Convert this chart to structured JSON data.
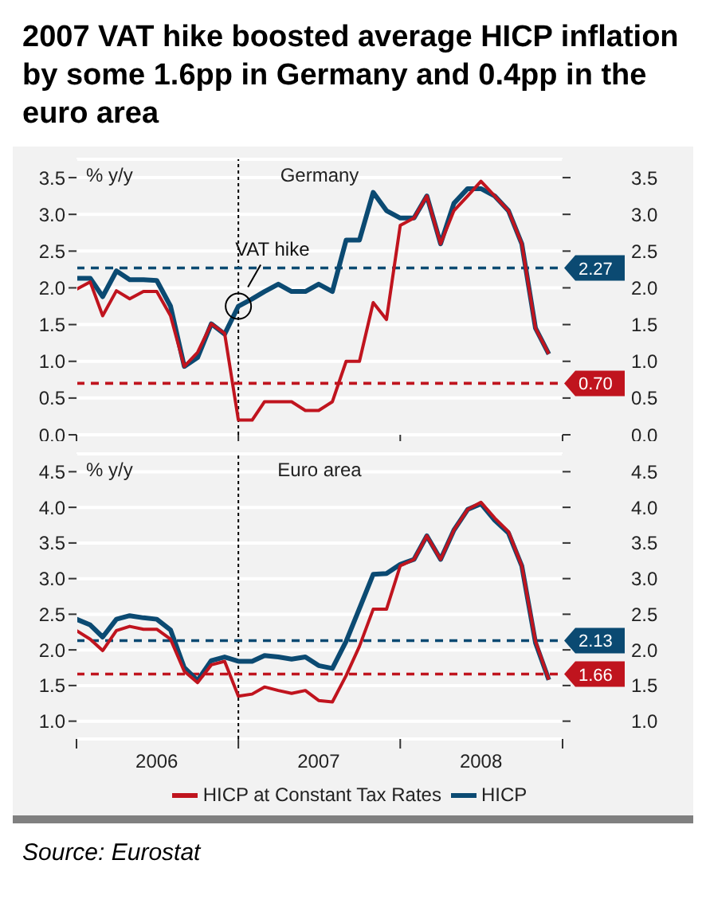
{
  "chart_data": [
    {
      "type": "line",
      "title": "2007 VAT hike boosted average HICP inflation by some 1.6pp in Germany and 0.4pp in the euro area",
      "subtitle": "Germany",
      "ylabel": "% y/y",
      "x": [
        "2006-01",
        "2006-02",
        "2006-03",
        "2006-04",
        "2006-05",
        "2006-06",
        "2006-07",
        "2006-08",
        "2006-09",
        "2006-10",
        "2006-11",
        "2006-12",
        "2007-01",
        "2007-02",
        "2007-03",
        "2007-04",
        "2007-05",
        "2007-06",
        "2007-07",
        "2007-08",
        "2007-09",
        "2007-10",
        "2007-11",
        "2007-12",
        "2008-01",
        "2008-02",
        "2008-03",
        "2008-04",
        "2008-05",
        "2008-06",
        "2008-07",
        "2008-08",
        "2008-09",
        "2008-10",
        "2008-11",
        "2008-12"
      ],
      "series": [
        {
          "color": "#c0141e",
          "values": [
            1.98,
            2.08,
            1.62,
            1.96,
            1.85,
            1.95,
            1.95,
            1.62,
            0.93,
            1.12,
            1.51,
            1.38,
            0.2,
            0.2,
            0.45,
            0.45,
            0.45,
            0.33,
            0.33,
            0.45,
            1.0,
            1.0,
            1.8,
            1.57,
            2.85,
            2.95,
            3.25,
            2.6,
            3.05,
            3.25,
            3.45,
            3.25,
            3.05,
            2.6,
            1.45,
            1.1
          ]
        },
        {
          "color": "#0b4a72",
          "values": [
            2.13,
            2.13,
            1.88,
            2.23,
            2.11,
            2.11,
            2.1,
            1.75,
            0.93,
            1.05,
            1.51,
            1.37,
            1.75,
            1.85,
            1.95,
            2.05,
            1.95,
            1.95,
            2.05,
            1.95,
            2.65,
            2.65,
            3.3,
            3.05,
            2.95,
            2.95,
            3.25,
            2.6,
            3.15,
            3.35,
            3.35,
            3.25,
            3.05,
            2.6,
            1.45,
            1.1
          ]
        }
      ],
      "xlim": [
        "2006-01",
        "2009-01"
      ],
      "xticks": [
        {
          "value": "2006-01",
          "label": null
        },
        {
          "value": "2007-01",
          "label": null
        },
        {
          "value": "2008-01",
          "label": null
        },
        {
          "value": "2009-01",
          "label": null
        }
      ],
      "ylim": [
        0,
        3.75
      ],
      "yticks": [
        {
          "value": 0,
          "label": "0.0"
        },
        0.5,
        {
          "value": 1,
          "label": "1.0"
        },
        1.5,
        {
          "value": 2,
          "label": "2.0"
        },
        2.5,
        {
          "value": 3,
          "label": "3.0"
        },
        3.5
      ],
      "y2lim": [
        0,
        3.75
      ],
      "y2ticks": [
        {
          "value": 0,
          "label": "0.0"
        },
        0.5,
        {
          "value": 1,
          "label": "1.0"
        },
        1.5,
        {
          "value": 2,
          "label": "2.0"
        },
        2.5,
        {
          "value": 3,
          "label": "3.0"
        },
        3.5
      ],
      "tick_labels": "y",
      "grid": "y",
      "ref_lines": [
        {
          "axis": "x",
          "value": "2007-01",
          "label": null,
          "color": "#000000",
          "line_style": "dotted"
        },
        {
          "axis": "y",
          "value": 2.27,
          "label": "2.27",
          "color": "#0b4a72",
          "line_style": "dashed"
        },
        {
          "axis": "y",
          "value": 0.7,
          "label": "0.70",
          "color": "#c0141e",
          "line_style": "dashed"
        }
      ],
      "annotations": [
        {
          "text": "VAT hike",
          "x": "2007-01",
          "y": 1.75
        }
      ]
    },
    {
      "type": "line",
      "title": "Euro area",
      "ylabel": "% y/y",
      "x": [
        "2006-01",
        "2006-02",
        "2006-03",
        "2006-04",
        "2006-05",
        "2006-06",
        "2006-07",
        "2006-08",
        "2006-09",
        "2006-10",
        "2006-11",
        "2006-12",
        "2007-01",
        "2007-02",
        "2007-03",
        "2007-04",
        "2007-05",
        "2007-06",
        "2007-07",
        "2007-08",
        "2007-09",
        "2007-10",
        "2007-11",
        "2007-12",
        "2008-01",
        "2008-02",
        "2008-03",
        "2008-04",
        "2008-05",
        "2008-06",
        "2008-07",
        "2008-08",
        "2008-09",
        "2008-10",
        "2008-11",
        "2008-12"
      ],
      "series": [
        {
          "name": "HICP at Constant Tax Rates",
          "color": "#c0141e",
          "values": [
            2.27,
            2.15,
            1.99,
            2.27,
            2.33,
            2.29,
            2.29,
            2.15,
            1.7,
            1.54,
            1.79,
            1.84,
            1.35,
            1.38,
            1.48,
            1.43,
            1.39,
            1.43,
            1.29,
            1.27,
            1.64,
            2.05,
            2.57,
            2.57,
            3.18,
            3.27,
            3.6,
            3.27,
            3.68,
            3.97,
            4.07,
            3.85,
            3.66,
            3.18,
            2.12,
            1.58
          ]
        },
        {
          "name": "HICP",
          "color": "#0b4a72",
          "values": [
            2.43,
            2.35,
            2.18,
            2.43,
            2.48,
            2.45,
            2.43,
            2.28,
            1.75,
            1.57,
            1.85,
            1.9,
            1.84,
            1.84,
            1.92,
            1.9,
            1.87,
            1.9,
            1.78,
            1.74,
            2.12,
            2.58,
            3.06,
            3.07,
            3.2,
            3.27,
            3.6,
            3.27,
            3.68,
            3.97,
            4.05,
            3.82,
            3.64,
            3.18,
            2.1,
            1.58
          ]
        }
      ],
      "xlim": [
        "2006-01",
        "2009-01"
      ],
      "xticks": [
        {
          "value": "2006-01",
          "label": null
        },
        {
          "value": "2006-07",
          "label": "2006"
        },
        {
          "value": "2007-01",
          "label": null
        },
        {
          "value": "2007-07",
          "label": "2007"
        },
        {
          "value": "2008-01",
          "label": null
        },
        {
          "value": "2008-07",
          "label": "2008"
        },
        {
          "value": "2009-01",
          "label": null
        }
      ],
      "ylim": [
        0.75,
        4.75
      ],
      "yticks": [
        {
          "value": 1,
          "label": "1.0"
        },
        1.5,
        {
          "value": 2,
          "label": "2.0"
        },
        2.5,
        {
          "value": 3,
          "label": "3.0"
        },
        3.5,
        {
          "value": 4,
          "label": "4.0"
        },
        4.5
      ],
      "y2lim": [
        0.75,
        4.75
      ],
      "y2ticks": [
        {
          "value": 1,
          "label": "1.0"
        },
        1.5,
        {
          "value": 2,
          "label": "2.0"
        },
        2.5,
        {
          "value": 3,
          "label": "3.0"
        },
        3.5,
        {
          "value": 4,
          "label": "4.0"
        },
        4.5
      ],
      "grid": "y",
      "legend": "bottom",
      "ref_lines": [
        {
          "axis": "x",
          "value": "2007-01",
          "label": null,
          "color": "#000000",
          "line_style": "dotted"
        },
        {
          "axis": "y",
          "value": 2.13,
          "label": "2.13",
          "color": "#0b4a72",
          "line_style": "dashed"
        },
        {
          "axis": "y",
          "value": 1.66,
          "label": "1.66",
          "color": "#c0141e",
          "line_style": "dashed"
        }
      ],
      "annotations": [
        "Source: Eurostat"
      ]
    }
  ]
}
